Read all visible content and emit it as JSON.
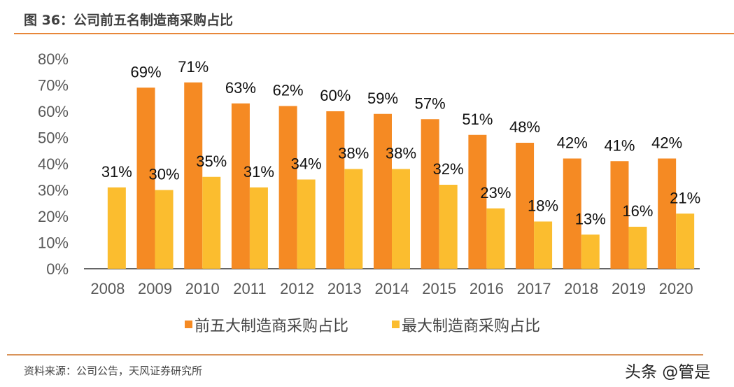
{
  "title": "图 36：公司前五名制造商采购占比",
  "source": "资料来源：公司公告，天风证券研究所",
  "watermark": "头条 @管是",
  "colors": {
    "series1": "#F58A23",
    "series2": "#FBBD2F",
    "accent": "#E8873A"
  },
  "chart_data": {
    "type": "bar",
    "title": "",
    "xlabel": "",
    "ylabel": "",
    "ylim": [
      0,
      80
    ],
    "yticks": [
      "0%",
      "10%",
      "20%",
      "30%",
      "40%",
      "50%",
      "60%",
      "70%",
      "80%"
    ],
    "grid": false,
    "legend_position": "bottom",
    "categories": [
      "2008",
      "2009",
      "2010",
      "2011",
      "2012",
      "2013",
      "2014",
      "2015",
      "2016",
      "2017",
      "2018",
      "2019",
      "2020"
    ],
    "series": [
      {
        "name": "前五大制造商采购占比",
        "values": [
          null,
          69,
          71,
          63,
          62,
          60,
          59,
          57,
          51,
          48,
          42,
          41,
          42
        ]
      },
      {
        "name": "最大制造商采购占比",
        "values": [
          31,
          30,
          35,
          31,
          34,
          38,
          38,
          32,
          23,
          18,
          13,
          16,
          21
        ]
      }
    ]
  }
}
